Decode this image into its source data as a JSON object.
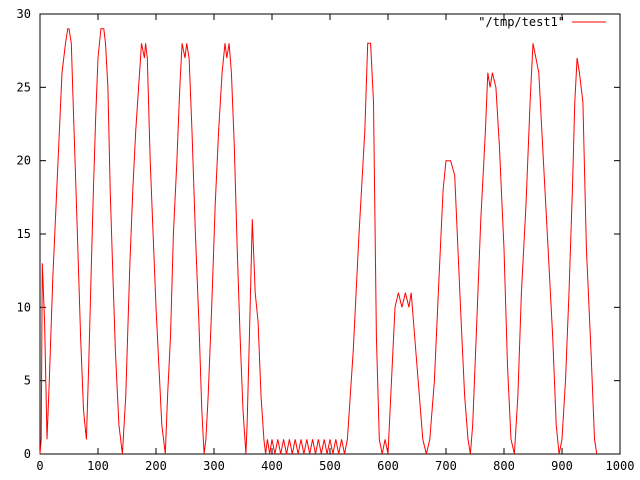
{
  "chart_data": {
    "type": "line",
    "title": "",
    "xlabel": "",
    "ylabel": "",
    "xlim": [
      0,
      1000
    ],
    "ylim": [
      0,
      30
    ],
    "xticks": [
      "0",
      "100",
      "200",
      "300",
      "400",
      "500",
      "600",
      "700",
      "800",
      "900",
      "1000"
    ],
    "yticks": [
      "0",
      "5",
      "10",
      "15",
      "20",
      "25",
      "30"
    ],
    "grid": false,
    "legend_position": "top-right",
    "series": [
      {
        "name": "\"/tmp/test1\"",
        "color": "#ff0000",
        "x": [
          0,
          2,
          4,
          8,
          12,
          16,
          22,
          30,
          38,
          44,
          48,
          50,
          54,
          58,
          62,
          66,
          70,
          75,
          80,
          84,
          88,
          92,
          96,
          100,
          105,
          110,
          113,
          117,
          121,
          125,
          130,
          136,
          142,
          148,
          151,
          155,
          160,
          165,
          170,
          175,
          180,
          182,
          185,
          190,
          195,
          200,
          205,
          210,
          216,
          220,
          225,
          230,
          236,
          241,
          245,
          250,
          253,
          257,
          262,
          268,
          274,
          279,
          283,
          286,
          290,
          296,
          302,
          308,
          314,
          319,
          322,
          326,
          330,
          335,
          340,
          345,
          350,
          355,
          357,
          361,
          366,
          371,
          376,
          381,
          386,
          389,
          392,
          396,
          400,
          405,
          410,
          415,
          420,
          425,
          430,
          435,
          440,
          445,
          450,
          455,
          460,
          465,
          470,
          475,
          480,
          485,
          490,
          495,
          500,
          505,
          510,
          515,
          520,
          525,
          530,
          540,
          550,
          560,
          565,
          570,
          575,
          580,
          585,
          590,
          595,
          600,
          606,
          612,
          618,
          624,
          630,
          636,
          640,
          650,
          660,
          666,
          672,
          680,
          688,
          695,
          700,
          708,
          715,
          725,
          732,
          738,
          742,
          746,
          752,
          760,
          768,
          772,
          776,
          780,
          786,
          792,
          800,
          806,
          812,
          818,
          824,
          830,
          838,
          845,
          850,
          855,
          860,
          868,
          876,
          884,
          890,
          895,
          900,
          906,
          912,
          918,
          922,
          926,
          930,
          936,
          942,
          950,
          956,
          960
        ],
        "y": [
          0,
          1,
          13,
          9,
          1,
          5,
          12,
          19,
          26,
          28,
          29,
          29,
          28,
          23,
          18,
          13,
          8,
          3,
          1,
          6,
          12,
          18,
          23,
          27,
          29,
          29,
          28,
          25,
          18,
          13,
          7,
          2,
          0,
          4,
          8,
          13,
          18,
          22,
          25,
          28,
          27,
          28,
          27,
          20,
          15,
          10,
          6,
          2,
          0,
          4,
          8,
          15,
          20,
          25,
          28,
          27,
          28,
          27,
          22,
          15,
          9,
          3,
          0,
          1,
          4,
          10,
          17,
          22,
          26,
          28,
          27,
          28,
          26,
          21,
          14,
          8,
          3,
          0,
          2,
          8,
          16,
          11,
          9,
          4,
          1,
          0,
          1,
          0,
          1,
          0,
          1,
          0,
          1,
          0,
          1,
          0,
          1,
          0,
          1,
          0,
          1,
          0,
          1,
          0,
          1,
          0,
          1,
          0,
          1,
          0,
          1,
          0,
          1,
          0,
          1,
          7,
          15,
          22,
          28,
          28,
          24,
          8,
          1,
          0,
          1,
          0,
          5,
          10,
          11,
          10,
          11,
          10,
          11,
          6,
          1,
          0,
          1,
          5,
          12,
          18,
          20,
          20,
          19,
          10,
          4,
          1,
          0,
          2,
          8,
          16,
          22,
          26,
          25,
          26,
          25,
          21,
          14,
          6,
          1,
          0,
          4,
          11,
          17,
          24,
          28,
          27,
          26,
          20,
          14,
          8,
          2,
          0,
          1,
          5,
          11,
          18,
          24,
          27,
          26,
          24,
          14,
          7,
          1,
          0
        ]
      }
    ]
  }
}
